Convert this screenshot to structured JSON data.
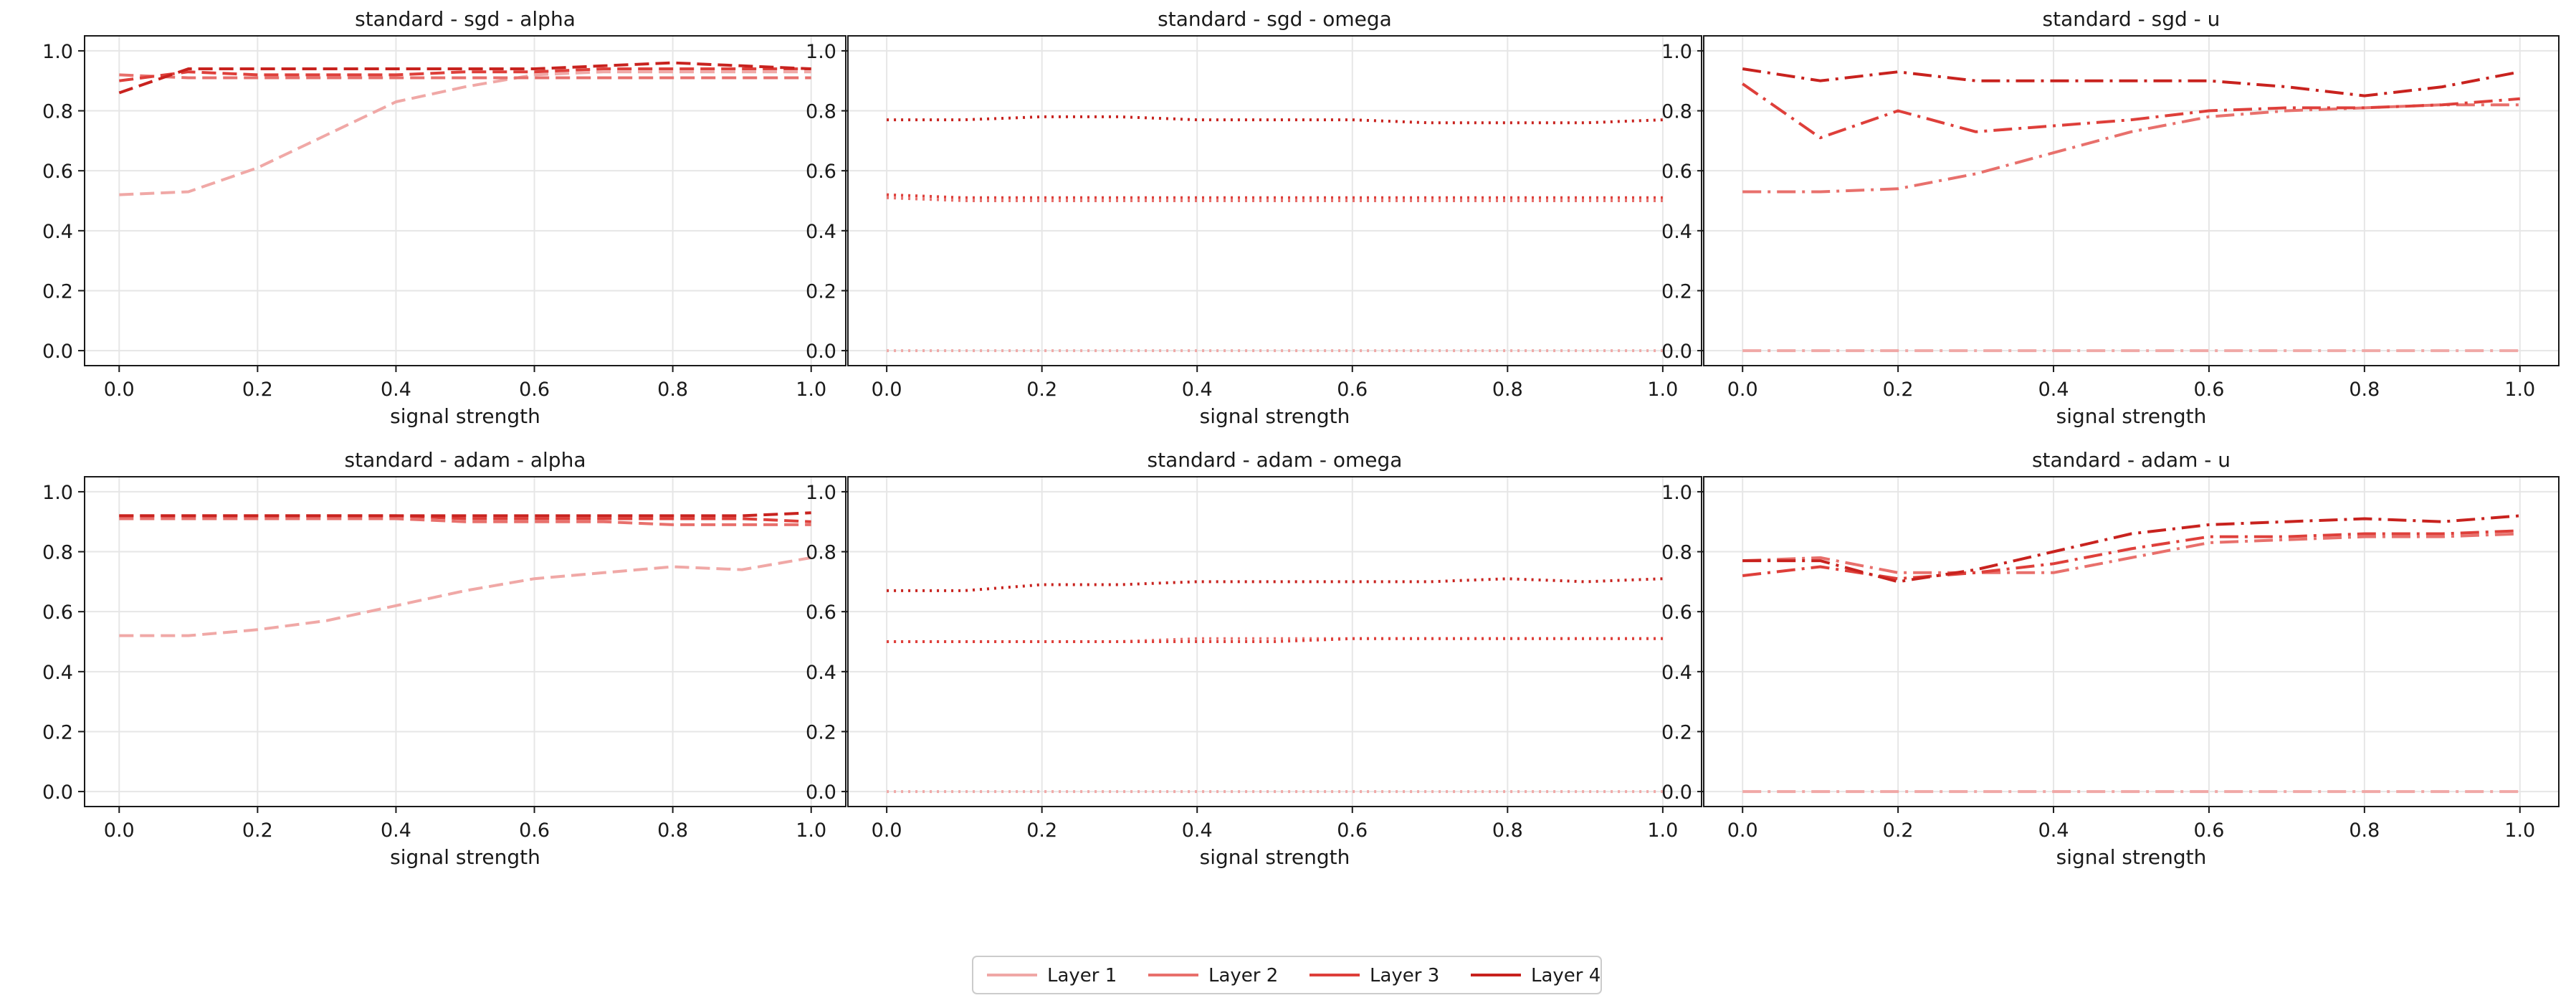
{
  "figure": {
    "legend_placement": "bottom-center",
    "axis_color": "#1a1a1a",
    "grid_color": "#e6e6e6",
    "legend": [
      {
        "label": "Layer 1",
        "color": "#f0a8a6"
      },
      {
        "label": "Layer 2",
        "color": "#e8706c"
      },
      {
        "label": "Layer 3",
        "color": "#de3f3a"
      },
      {
        "label": "Layer 4",
        "color": "#c8221e"
      }
    ]
  },
  "chart_data": [
    {
      "type": "line",
      "title": "standard - sgd - alpha",
      "xlabel": "signal strength",
      "ylabel": "",
      "xlim": [
        -0.05,
        1.05
      ],
      "ylim": [
        -0.05,
        1.05
      ],
      "grid": true,
      "line_style": "dashed",
      "x": [
        0.0,
        0.1,
        0.2,
        0.3,
        0.4,
        0.5,
        0.6,
        0.7,
        0.8,
        0.9,
        1.0
      ],
      "xticks": [
        "0.0",
        "0.2",
        "0.4",
        "0.6",
        "0.8",
        "1.0"
      ],
      "yticks": [
        "0.0",
        "0.2",
        "0.4",
        "0.6",
        "0.8",
        "1.0"
      ],
      "series": [
        {
          "name": "Layer 1",
          "values": [
            0.52,
            0.53,
            0.61,
            0.72,
            0.83,
            0.88,
            0.92,
            0.93,
            0.93,
            0.93,
            0.93
          ]
        },
        {
          "name": "Layer 2",
          "values": [
            0.92,
            0.91,
            0.91,
            0.91,
            0.91,
            0.91,
            0.91,
            0.91,
            0.91,
            0.91,
            0.91
          ]
        },
        {
          "name": "Layer 3",
          "values": [
            0.9,
            0.93,
            0.92,
            0.92,
            0.92,
            0.93,
            0.93,
            0.94,
            0.94,
            0.94,
            0.94
          ]
        },
        {
          "name": "Layer 4",
          "values": [
            0.86,
            0.94,
            0.94,
            0.94,
            0.94,
            0.94,
            0.94,
            0.95,
            0.96,
            0.95,
            0.94
          ]
        }
      ]
    },
    {
      "type": "line",
      "title": "standard - sgd - omega",
      "xlabel": "signal strength",
      "ylabel": "",
      "xlim": [
        -0.05,
        1.05
      ],
      "ylim": [
        -0.05,
        1.05
      ],
      "grid": true,
      "line_style": "dotted",
      "x": [
        0.0,
        0.1,
        0.2,
        0.3,
        0.4,
        0.5,
        0.6,
        0.7,
        0.8,
        0.9,
        1.0
      ],
      "xticks": [
        "0.0",
        "0.2",
        "0.4",
        "0.6",
        "0.8",
        "1.0"
      ],
      "yticks": [
        "0.0",
        "0.2",
        "0.4",
        "0.6",
        "0.8",
        "1.0"
      ],
      "series": [
        {
          "name": "Layer 1",
          "values": [
            0.0,
            0.0,
            0.0,
            0.0,
            0.0,
            0.0,
            0.0,
            0.0,
            0.0,
            0.0,
            0.0
          ]
        },
        {
          "name": "Layer 2",
          "values": [
            0.51,
            0.5,
            0.5,
            0.5,
            0.5,
            0.5,
            0.5,
            0.5,
            0.5,
            0.5,
            0.5
          ]
        },
        {
          "name": "Layer 3",
          "values": [
            0.52,
            0.51,
            0.51,
            0.51,
            0.51,
            0.51,
            0.51,
            0.51,
            0.51,
            0.51,
            0.51
          ]
        },
        {
          "name": "Layer 4",
          "values": [
            0.77,
            0.77,
            0.78,
            0.78,
            0.77,
            0.77,
            0.77,
            0.76,
            0.76,
            0.76,
            0.77
          ]
        }
      ]
    },
    {
      "type": "line",
      "title": "standard - sgd - u",
      "xlabel": "signal strength",
      "ylabel": "",
      "xlim": [
        -0.05,
        1.05
      ],
      "ylim": [
        -0.05,
        1.05
      ],
      "grid": true,
      "line_style": "dashdot",
      "x": [
        0.0,
        0.1,
        0.2,
        0.3,
        0.4,
        0.5,
        0.6,
        0.7,
        0.8,
        0.9,
        1.0
      ],
      "xticks": [
        "0.0",
        "0.2",
        "0.4",
        "0.6",
        "0.8",
        "1.0"
      ],
      "yticks": [
        "0.0",
        "0.2",
        "0.4",
        "0.6",
        "0.8",
        "1.0"
      ],
      "series": [
        {
          "name": "Layer 1",
          "values": [
            0.0,
            0.0,
            0.0,
            0.0,
            0.0,
            0.0,
            0.0,
            0.0,
            0.0,
            0.0,
            0.0
          ]
        },
        {
          "name": "Layer 2",
          "values": [
            0.53,
            0.53,
            0.54,
            0.59,
            0.66,
            0.73,
            0.78,
            0.8,
            0.81,
            0.82,
            0.82
          ]
        },
        {
          "name": "Layer 3",
          "values": [
            0.89,
            0.71,
            0.8,
            0.73,
            0.75,
            0.77,
            0.8,
            0.81,
            0.81,
            0.82,
            0.84
          ]
        },
        {
          "name": "Layer 4",
          "values": [
            0.94,
            0.9,
            0.93,
            0.9,
            0.9,
            0.9,
            0.9,
            0.88,
            0.85,
            0.88,
            0.93
          ]
        }
      ]
    },
    {
      "type": "line",
      "title": "standard - adam - alpha",
      "xlabel": "signal strength",
      "ylabel": "",
      "xlim": [
        -0.05,
        1.05
      ],
      "ylim": [
        -0.05,
        1.05
      ],
      "grid": true,
      "line_style": "dashed",
      "x": [
        0.0,
        0.1,
        0.2,
        0.3,
        0.4,
        0.5,
        0.6,
        0.7,
        0.8,
        0.9,
        1.0
      ],
      "xticks": [
        "0.0",
        "0.2",
        "0.4",
        "0.6",
        "0.8",
        "1.0"
      ],
      "yticks": [
        "0.0",
        "0.2",
        "0.4",
        "0.6",
        "0.8",
        "1.0"
      ],
      "series": [
        {
          "name": "Layer 1",
          "values": [
            0.52,
            0.52,
            0.54,
            0.57,
            0.62,
            0.67,
            0.71,
            0.73,
            0.75,
            0.74,
            0.78
          ]
        },
        {
          "name": "Layer 2",
          "values": [
            0.91,
            0.91,
            0.91,
            0.91,
            0.91,
            0.9,
            0.9,
            0.9,
            0.89,
            0.89,
            0.89
          ]
        },
        {
          "name": "Layer 3",
          "values": [
            0.92,
            0.92,
            0.92,
            0.92,
            0.92,
            0.91,
            0.91,
            0.91,
            0.91,
            0.91,
            0.9
          ]
        },
        {
          "name": "Layer 4",
          "values": [
            0.92,
            0.92,
            0.92,
            0.92,
            0.92,
            0.92,
            0.92,
            0.92,
            0.92,
            0.92,
            0.93
          ]
        }
      ]
    },
    {
      "type": "line",
      "title": "standard - adam - omega",
      "xlabel": "signal strength",
      "ylabel": "",
      "xlim": [
        -0.05,
        1.05
      ],
      "ylim": [
        -0.05,
        1.05
      ],
      "grid": true,
      "line_style": "dotted",
      "x": [
        0.0,
        0.1,
        0.2,
        0.3,
        0.4,
        0.5,
        0.6,
        0.7,
        0.8,
        0.9,
        1.0
      ],
      "xticks": [
        "0.0",
        "0.2",
        "0.4",
        "0.6",
        "0.8",
        "1.0"
      ],
      "yticks": [
        "0.0",
        "0.2",
        "0.4",
        "0.6",
        "0.8",
        "1.0"
      ],
      "series": [
        {
          "name": "Layer 1",
          "values": [
            0.0,
            0.0,
            0.0,
            0.0,
            0.0,
            0.0,
            0.0,
            0.0,
            0.0,
            0.0,
            0.0
          ]
        },
        {
          "name": "Layer 2",
          "values": [
            0.5,
            0.5,
            0.5,
            0.5,
            0.51,
            0.51,
            0.51,
            0.51,
            0.51,
            0.51,
            0.51
          ]
        },
        {
          "name": "Layer 3",
          "values": [
            0.5,
            0.5,
            0.5,
            0.5,
            0.5,
            0.5,
            0.51,
            0.51,
            0.51,
            0.51,
            0.51
          ]
        },
        {
          "name": "Layer 4",
          "values": [
            0.67,
            0.67,
            0.69,
            0.69,
            0.7,
            0.7,
            0.7,
            0.7,
            0.71,
            0.7,
            0.71
          ]
        }
      ]
    },
    {
      "type": "line",
      "title": "standard - adam - u",
      "xlabel": "signal strength",
      "ylabel": "",
      "xlim": [
        -0.05,
        1.05
      ],
      "ylim": [
        -0.05,
        1.05
      ],
      "grid": true,
      "line_style": "dashdot",
      "x": [
        0.0,
        0.1,
        0.2,
        0.3,
        0.4,
        0.5,
        0.6,
        0.7,
        0.8,
        0.9,
        1.0
      ],
      "xticks": [
        "0.0",
        "0.2",
        "0.4",
        "0.6",
        "0.8",
        "1.0"
      ],
      "yticks": [
        "0.0",
        "0.2",
        "0.4",
        "0.6",
        "0.8",
        "1.0"
      ],
      "series": [
        {
          "name": "Layer 1",
          "values": [
            0.0,
            0.0,
            0.0,
            0.0,
            0.0,
            0.0,
            0.0,
            0.0,
            0.0,
            0.0,
            0.0
          ]
        },
        {
          "name": "Layer 2",
          "values": [
            0.77,
            0.78,
            0.73,
            0.73,
            0.73,
            0.78,
            0.83,
            0.84,
            0.85,
            0.85,
            0.86
          ]
        },
        {
          "name": "Layer 3",
          "values": [
            0.72,
            0.75,
            0.71,
            0.73,
            0.76,
            0.81,
            0.85,
            0.85,
            0.86,
            0.86,
            0.87
          ]
        },
        {
          "name": "Layer 4",
          "values": [
            0.77,
            0.77,
            0.7,
            0.74,
            0.8,
            0.86,
            0.89,
            0.9,
            0.91,
            0.9,
            0.92
          ]
        }
      ]
    }
  ]
}
